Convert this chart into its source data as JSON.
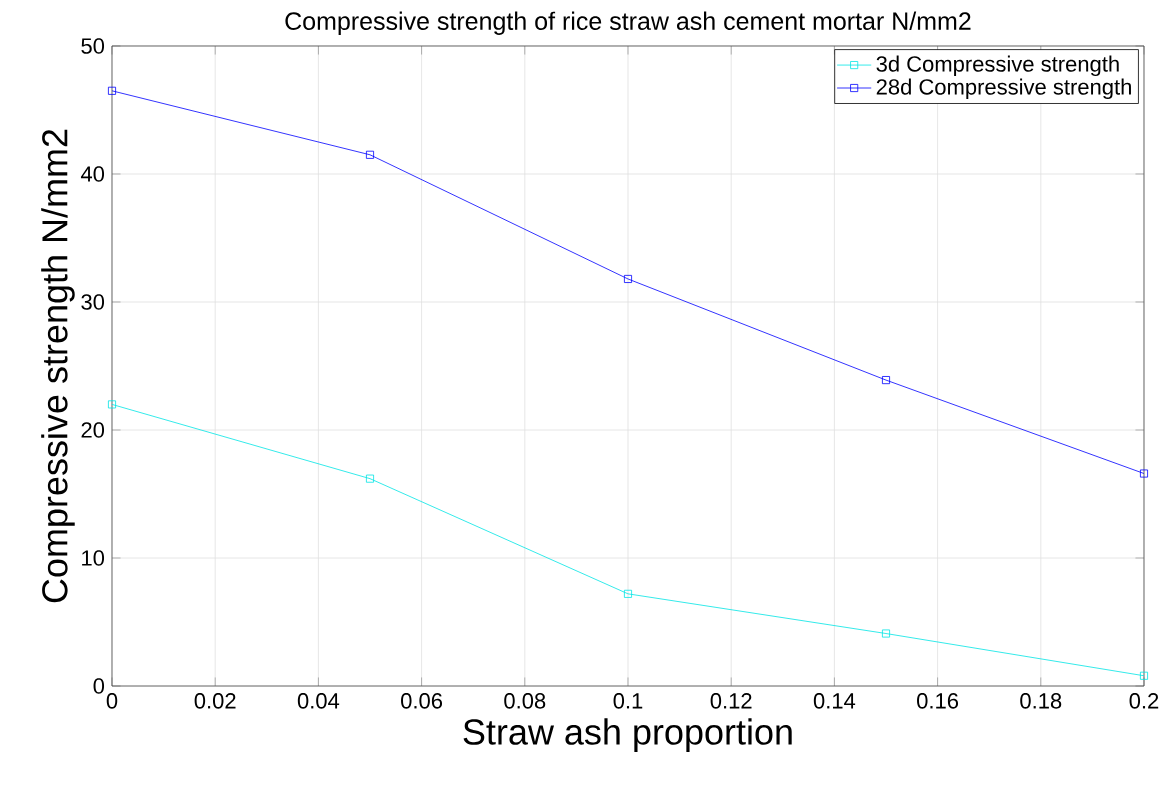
{
  "chart_data": {
    "type": "line",
    "title": "Compressive strength of rice straw ash cement mortar N/mm2",
    "xlabel": "Straw ash proportion",
    "ylabel": "Compressive strength N/mm2",
    "x": [
      0,
      0.05,
      0.1,
      0.15,
      0.2
    ],
    "series": [
      {
        "name": "3d Compressive strength",
        "color": "#00e5e5",
        "values": [
          22,
          16.2,
          7.2,
          4.1,
          0.8
        ]
      },
      {
        "name": "28d Compressive strength",
        "color": "#0000ff",
        "values": [
          46.5,
          41.5,
          31.8,
          23.9,
          16.6
        ]
      }
    ],
    "xlim": [
      0,
      0.2
    ],
    "xticks": [
      0,
      0.02,
      0.04,
      0.06,
      0.08,
      0.1,
      0.12,
      0.14,
      0.16,
      0.18,
      0.2
    ],
    "ylim": [
      0,
      50
    ],
    "yticks": [
      0,
      10,
      20,
      30,
      40,
      50
    ],
    "grid": true,
    "legend": "top right",
    "marker": "square",
    "line_style": "solid"
  }
}
